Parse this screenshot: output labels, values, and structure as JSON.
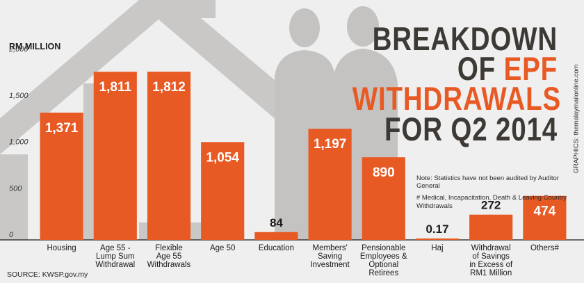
{
  "title": {
    "line1": "BREAKDOWN",
    "line2a": "OF",
    "line2b": "EPF",
    "line3": "WITHDRAWALS",
    "line4": "FOR Q2 2014"
  },
  "note": {
    "line1": "Note: Statistics have not been audited by Auditor General",
    "line2": "# Medical, Incapacitation, Death & Leaving Country Withdrawals"
  },
  "credit": "GRAPHICS: themalaymailonline.com",
  "source": "SOURCE: KWSP.gov.my",
  "colors": {
    "bar": "#e85a24",
    "title_dark": "#3d3935",
    "accent": "#e85a24"
  },
  "chart_data": {
    "type": "bar",
    "title": "BREAKDOWN OF EPF WITHDRAWALS FOR Q2 2014",
    "ylabel": "RM MILLION",
    "ylim": [
      0,
      2000
    ],
    "yticks": [
      "0",
      "500",
      "1,000",
      "1,500",
      "2,000"
    ],
    "yticks_values": [
      0,
      500,
      1000,
      1500,
      2000
    ],
    "categories": [
      [
        "Housing"
      ],
      [
        "Age 55 -",
        "Lump Sum",
        "Withdrawal"
      ],
      [
        "Flexible",
        "Age 55",
        "Withdrawals"
      ],
      [
        "Age 50"
      ],
      [
        "Education"
      ],
      [
        "Members'",
        "Saving",
        "Investment"
      ],
      [
        "Pensionable",
        "Employees &",
        "Optional",
        "Retirees"
      ],
      [
        "Haj"
      ],
      [
        "Withdrawal",
        "of Savings",
        "in Excess of",
        "RM1 Million"
      ],
      [
        "Others#"
      ]
    ],
    "values": [
      1371,
      1811,
      1812,
      1054,
      84,
      1197,
      890,
      0.17,
      272,
      474
    ],
    "data_labels": [
      "1,371",
      "1,811",
      "1,812",
      "1,054",
      "84",
      "1,197",
      "890",
      "0.17",
      "272",
      "474"
    ],
    "grid": false
  }
}
